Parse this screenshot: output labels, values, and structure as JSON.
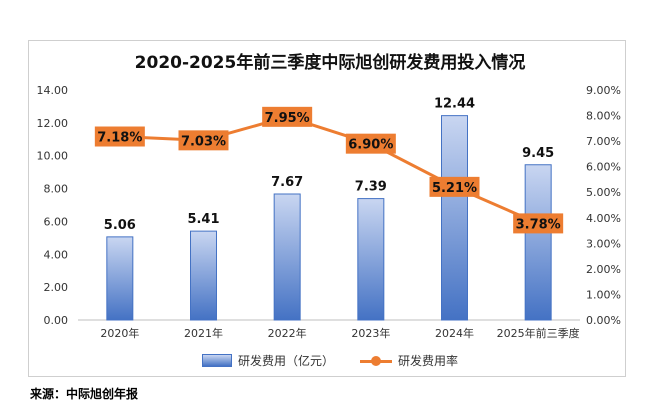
{
  "chart_data": {
    "type": "bar+line",
    "title": "2020-2025年前三季度中际旭创研发费用投入情况",
    "categories": [
      "2020年",
      "2021年",
      "2022年",
      "2023年",
      "2024年",
      "2025年前三季度"
    ],
    "series": [
      {
        "name": "研发费用（亿元）",
        "type": "bar",
        "axis": "left",
        "values": [
          5.06,
          5.41,
          7.67,
          7.39,
          12.44,
          9.45
        ],
        "labels": [
          "5.06",
          "5.41",
          "7.67",
          "7.39",
          "12.44",
          "9.45"
        ],
        "color": "#4472c4"
      },
      {
        "name": "研发费用率",
        "type": "line",
        "axis": "right",
        "values": [
          7.18,
          7.03,
          7.95,
          6.9,
          5.21,
          3.78
        ],
        "labels": [
          "7.18%",
          "7.03%",
          "7.95%",
          "6.90%",
          "5.21%",
          "3.78%"
        ],
        "color": "#ed7d31"
      }
    ],
    "y_left": {
      "min": 0,
      "max": 14,
      "ticks": [
        "0.00",
        "2.00",
        "4.00",
        "6.00",
        "8.00",
        "10.00",
        "12.00",
        "14.00"
      ]
    },
    "y_right": {
      "min": 0,
      "max": 9,
      "ticks": [
        "0.00%",
        "1.00%",
        "2.00%",
        "3.00%",
        "4.00%",
        "5.00%",
        "6.00%",
        "7.00%",
        "8.00%",
        "9.00%"
      ]
    },
    "grid": false,
    "legend": "bottom"
  },
  "source": "来源：中际旭创年报"
}
